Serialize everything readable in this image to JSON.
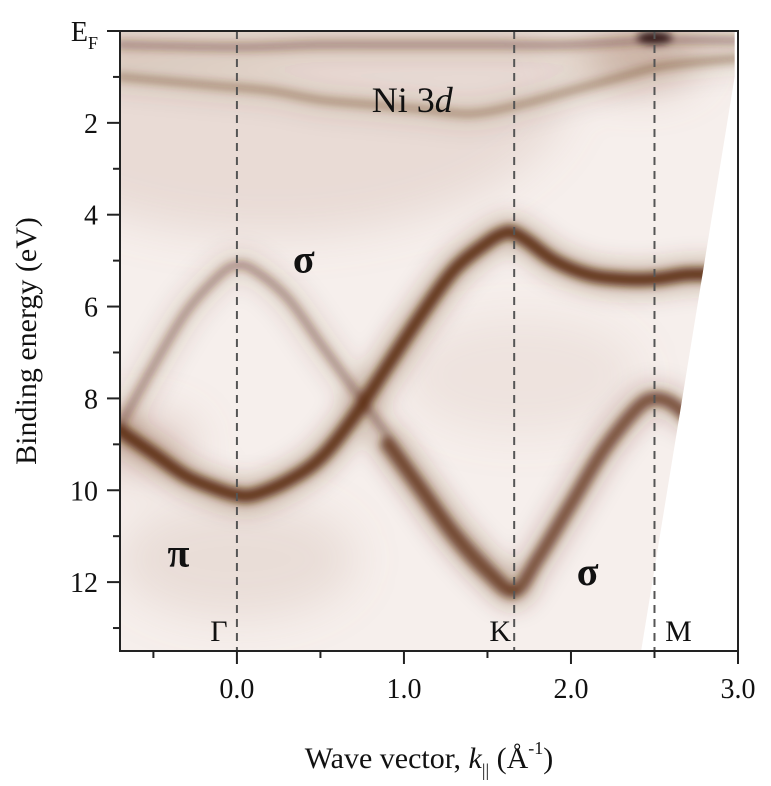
{
  "chart_data": {
    "type": "heatmap",
    "subtype": "ARPES intensity map (binding energy vs. wave vector)",
    "title": "",
    "xlabel": {
      "main": "Wave vector, ",
      "k": "k",
      "k_sub": "||",
      "unit_open": " (Å",
      "unit_exp": "-1",
      "unit_close": ")"
    },
    "ylabel": "Binding energy (eV)",
    "xlim": [
      -0.7,
      3.0
    ],
    "ylim": [
      0,
      13.5
    ],
    "y_reversed": true,
    "x_ticks": [
      0.0,
      1.0,
      2.0,
      3.0
    ],
    "x_tick_labels": [
      "0.0",
      "1.0",
      "2.0",
      "3.0"
    ],
    "x_minor_ticks": [
      -0.5,
      0.5,
      1.5,
      2.5
    ],
    "y_ticks": [
      0,
      2,
      4,
      6,
      8,
      10,
      12
    ],
    "y_tick_labels": [
      "E",
      "2",
      "4",
      "6",
      "8",
      "10",
      "12"
    ],
    "y_tick_label_ef_sub": "F",
    "y_minor_ticks": [
      1,
      3,
      5,
      7,
      9,
      11,
      13
    ],
    "symmetry_points": [
      {
        "label": "Γ",
        "x": 0.0
      },
      {
        "label": "K",
        "x": 1.66
      },
      {
        "label": "M",
        "x": 2.5
      }
    ],
    "annotations": [
      {
        "text": "Ni 3",
        "italic_suffix": "d",
        "x": 1.05,
        "y": 1.5
      },
      {
        "text": "σ",
        "x": 0.4,
        "y": 5.0
      },
      {
        "text": "π",
        "x": -0.35,
        "y": 11.4
      },
      {
        "text": "σ",
        "x": 2.1,
        "y": 11.8
      }
    ],
    "colormap": {
      "low": "#ffffff",
      "high": "#5a2a10"
    },
    "bands": [
      {
        "name": "π",
        "x": [
          -0.7,
          -0.5,
          -0.3,
          -0.1,
          0.0,
          0.1,
          0.3,
          0.5,
          0.7,
          0.9,
          1.1,
          1.3,
          1.5,
          1.6,
          1.66,
          1.75,
          1.9,
          2.1,
          2.3,
          2.5,
          2.7,
          2.9
        ],
        "y": [
          8.7,
          9.2,
          9.7,
          10.0,
          10.1,
          10.1,
          9.8,
          9.3,
          8.4,
          7.3,
          6.2,
          5.2,
          4.6,
          4.4,
          4.4,
          4.6,
          5.0,
          5.3,
          5.4,
          5.4,
          5.3,
          5.3
        ],
        "intensity": 1.0
      },
      {
        "name": "σ1",
        "x": [
          -0.7,
          -0.5,
          -0.3,
          -0.1,
          0.0,
          0.1,
          0.3,
          0.5,
          0.7,
          0.9,
          1.1,
          1.3,
          1.5,
          1.66
        ],
        "y": [
          8.6,
          7.3,
          6.1,
          5.3,
          5.1,
          5.2,
          5.8,
          6.8,
          7.8,
          8.8,
          9.8,
          10.8,
          11.6,
          12.2
        ],
        "intensity": 0.45
      },
      {
        "name": "σ2",
        "x": [
          0.9,
          1.1,
          1.3,
          1.5,
          1.66,
          1.8,
          2.0,
          2.2,
          2.4,
          2.5,
          2.6,
          2.7
        ],
        "y": [
          9.0,
          10.0,
          11.0,
          11.8,
          12.2,
          11.5,
          10.3,
          9.1,
          8.2,
          8.0,
          8.1,
          8.4
        ],
        "intensity": 0.8
      },
      {
        "name": "Ni 3d",
        "x": [
          -0.7,
          -0.4,
          -0.1,
          0.2,
          0.5,
          0.8,
          1.1,
          1.4,
          1.7,
          2.0,
          2.3,
          2.5,
          2.7,
          3.0
        ],
        "y": [
          1.0,
          1.1,
          1.2,
          1.3,
          1.5,
          1.6,
          1.7,
          1.8,
          1.6,
          1.3,
          1.0,
          0.8,
          0.7,
          0.6
        ],
        "intensity": 0.35
      },
      {
        "name": "E_F",
        "x": [
          -0.7,
          0.0,
          0.5,
          1.0,
          1.5,
          2.0,
          2.5,
          3.0
        ],
        "y": [
          0.3,
          0.35,
          0.3,
          0.3,
          0.3,
          0.3,
          0.2,
          0.2
        ],
        "intensity": 0.4
      }
    ]
  }
}
